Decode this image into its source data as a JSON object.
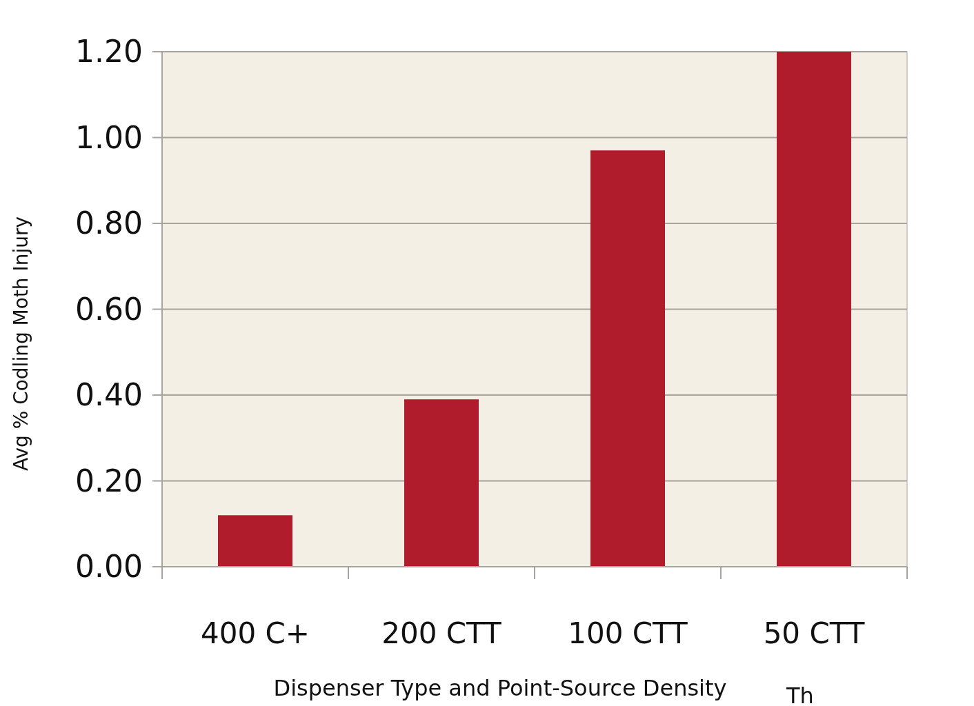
{
  "chart_data": {
    "type": "bar",
    "categories": [
      "400 C+",
      "200 CTT",
      "100 CTT",
      "50 CTT"
    ],
    "values": [
      0.12,
      0.39,
      0.97,
      1.2
    ],
    "color": "#b01c2c",
    "xlabel": "Dispenser Type and Point-Source Density",
    "ylabel": "Avg % Codling Moth Injury",
    "ylim": [
      0,
      1.2
    ],
    "yticks": [
      {
        "value": 0,
        "label": "0.00"
      },
      {
        "value": 0.2,
        "label": "0.20"
      },
      {
        "value": 0.4,
        "label": "0.40"
      },
      {
        "value": 0.6,
        "label": "0.60"
      },
      {
        "value": 0.8,
        "label": "0.80"
      },
      {
        "value": 1,
        "label": "1.00"
      },
      {
        "value": 1.2,
        "label": "1.20"
      }
    ],
    "grid": "y",
    "annotations": [
      "Th"
    ]
  }
}
